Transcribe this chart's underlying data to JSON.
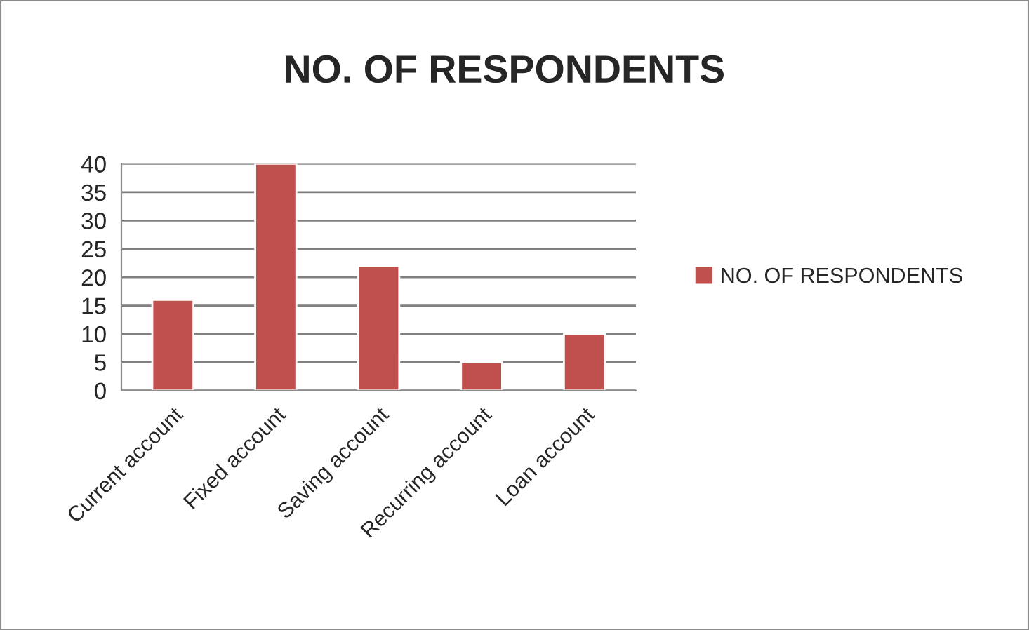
{
  "chart_data": {
    "type": "bar",
    "title": "NO. OF RESPONDENTS",
    "categories": [
      "Current account",
      "Fixed account",
      "Saving account",
      "Recurring account",
      "Loan account"
    ],
    "series": [
      {
        "name": "NO. OF RESPONDENTS",
        "color": "#c0504d",
        "values": [
          16,
          40,
          22,
          5,
          10
        ]
      }
    ],
    "ylim": [
      0,
      40
    ],
    "yticks": [
      0,
      5,
      10,
      15,
      20,
      25,
      30,
      35,
      40
    ],
    "grid": "y",
    "legend": "right"
  }
}
